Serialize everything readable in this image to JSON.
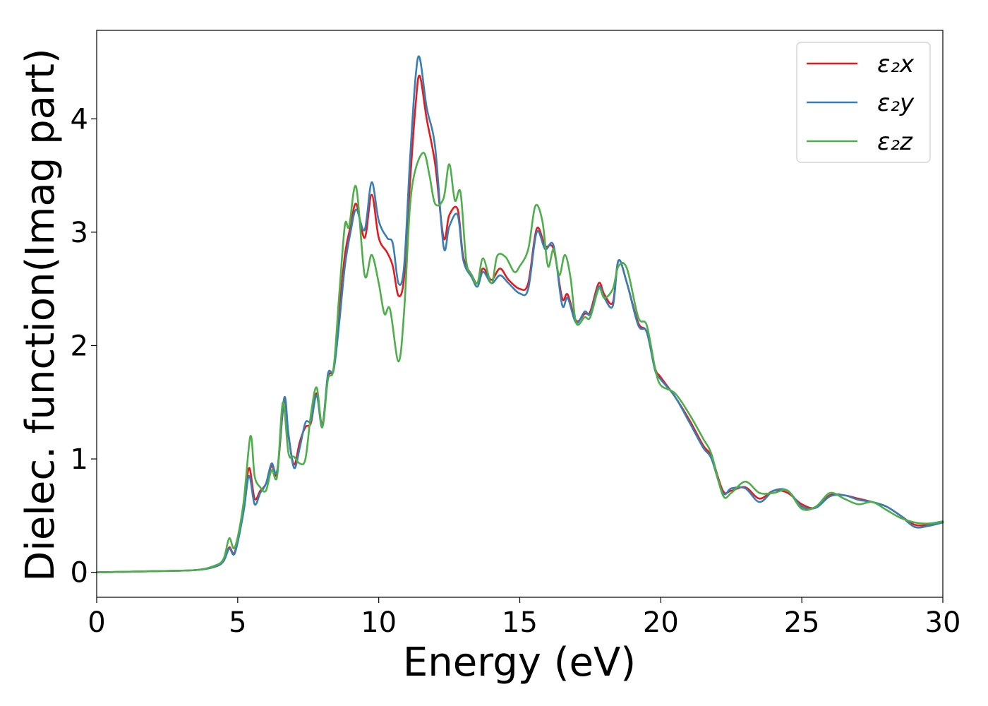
{
  "chart_data": {
    "type": "line",
    "title": "",
    "xlabel": "Energy (eV)",
    "ylabel": "Dielec. function(Imag part)",
    "xlim": [
      0,
      30
    ],
    "ylim": [
      -0.22,
      4.78
    ],
    "xticks": [
      0,
      5,
      10,
      15,
      20,
      25,
      30
    ],
    "yticks": [
      0,
      1,
      2,
      3,
      4
    ],
    "grid": false,
    "legend_position": "top-right",
    "series": [
      {
        "name": "ε₂x",
        "color": "#e41a1c",
        "x": [
          0,
          2,
          3.5,
          4.2,
          4.5,
          4.7,
          4.9,
          5.2,
          5.4,
          5.6,
          5.8,
          6.0,
          6.2,
          6.4,
          6.65,
          6.8,
          7.0,
          7.2,
          7.4,
          7.6,
          7.8,
          8.0,
          8.2,
          8.4,
          8.6,
          8.8,
          9.0,
          9.2,
          9.5,
          9.75,
          10.0,
          10.3,
          10.5,
          10.7,
          10.9,
          11.1,
          11.3,
          11.45,
          11.7,
          12.0,
          12.3,
          12.5,
          12.8,
          13.0,
          13.3,
          13.5,
          13.7,
          14.0,
          14.3,
          14.6,
          15.0,
          15.3,
          15.6,
          15.9,
          16.2,
          16.5,
          16.7,
          17.0,
          17.3,
          17.5,
          17.8,
          18.0,
          18.3,
          18.5,
          18.8,
          19.2,
          19.5,
          19.8,
          20.0,
          20.5,
          21.0,
          21.5,
          21.8,
          22.2,
          22.5,
          23.0,
          23.5,
          24.0,
          24.5,
          25.0,
          25.5,
          26.0,
          26.5,
          27.0,
          27.5,
          28.0,
          28.5,
          29.0,
          29.5,
          30.0
        ],
        "y": [
          0.0,
          0.01,
          0.02,
          0.05,
          0.1,
          0.22,
          0.18,
          0.55,
          0.92,
          0.65,
          0.72,
          0.78,
          0.94,
          0.88,
          1.52,
          1.2,
          0.95,
          1.15,
          1.28,
          1.32,
          1.58,
          1.3,
          1.72,
          1.8,
          2.3,
          2.8,
          3.05,
          3.25,
          2.95,
          3.33,
          2.95,
          2.82,
          2.7,
          2.44,
          2.6,
          3.4,
          4.1,
          4.38,
          4.0,
          3.6,
          2.95,
          3.15,
          3.2,
          2.78,
          2.62,
          2.55,
          2.68,
          2.58,
          2.68,
          2.58,
          2.5,
          2.55,
          3.03,
          2.88,
          2.85,
          2.42,
          2.45,
          2.22,
          2.28,
          2.3,
          2.55,
          2.45,
          2.38,
          2.75,
          2.55,
          2.2,
          2.12,
          1.8,
          1.72,
          1.55,
          1.35,
          1.12,
          1.02,
          0.72,
          0.72,
          0.75,
          0.65,
          0.72,
          0.7,
          0.6,
          0.57,
          0.68,
          0.68,
          0.65,
          0.62,
          0.58,
          0.5,
          0.42,
          0.42,
          0.44
        ]
      },
      {
        "name": "ε₂y",
        "color": "#377eb8",
        "x": [
          0,
          2,
          3.5,
          4.2,
          4.5,
          4.7,
          4.9,
          5.2,
          5.4,
          5.6,
          5.8,
          6.0,
          6.2,
          6.4,
          6.65,
          6.8,
          7.0,
          7.2,
          7.4,
          7.6,
          7.8,
          8.0,
          8.2,
          8.4,
          8.6,
          8.8,
          9.0,
          9.2,
          9.5,
          9.75,
          10.0,
          10.3,
          10.5,
          10.7,
          10.9,
          11.1,
          11.3,
          11.45,
          11.7,
          12.0,
          12.3,
          12.5,
          12.8,
          13.0,
          13.3,
          13.5,
          13.7,
          14.0,
          14.3,
          14.6,
          15.0,
          15.3,
          15.6,
          15.9,
          16.2,
          16.5,
          16.7,
          17.0,
          17.3,
          17.5,
          17.8,
          18.0,
          18.3,
          18.5,
          18.8,
          19.2,
          19.5,
          19.8,
          20.0,
          20.5,
          21.0,
          21.5,
          21.8,
          22.2,
          22.5,
          23.0,
          23.5,
          24.0,
          24.5,
          25.0,
          25.5,
          26.0,
          26.5,
          27.0,
          27.5,
          28.0,
          28.5,
          29.0,
          29.5,
          30.0
        ],
        "y": [
          0.0,
          0.01,
          0.02,
          0.05,
          0.1,
          0.21,
          0.17,
          0.52,
          0.85,
          0.6,
          0.7,
          0.78,
          0.96,
          0.9,
          1.54,
          1.22,
          0.92,
          1.1,
          1.32,
          1.34,
          1.56,
          1.28,
          1.75,
          1.78,
          2.2,
          2.7,
          3.0,
          3.2,
          3.02,
          3.44,
          3.1,
          2.95,
          2.9,
          2.55,
          2.7,
          3.6,
          4.35,
          4.54,
          4.1,
          3.75,
          2.87,
          3.05,
          3.15,
          2.75,
          2.6,
          2.52,
          2.65,
          2.55,
          2.62,
          2.55,
          2.46,
          2.5,
          3.0,
          2.85,
          2.88,
          2.36,
          2.42,
          2.2,
          2.3,
          2.28,
          2.52,
          2.42,
          2.35,
          2.75,
          2.55,
          2.18,
          2.12,
          1.78,
          1.7,
          1.55,
          1.33,
          1.1,
          1.0,
          0.7,
          0.74,
          0.74,
          0.62,
          0.72,
          0.72,
          0.58,
          0.57,
          0.67,
          0.68,
          0.64,
          0.62,
          0.58,
          0.5,
          0.4,
          0.41,
          0.44
        ]
      },
      {
        "name": "ε₂z",
        "color": "#4daf4a",
        "x": [
          0,
          2,
          3.5,
          4.2,
          4.5,
          4.7,
          4.9,
          5.2,
          5.45,
          5.6,
          5.8,
          6.0,
          6.2,
          6.4,
          6.6,
          6.8,
          7.0,
          7.2,
          7.4,
          7.6,
          7.8,
          8.0,
          8.2,
          8.4,
          8.6,
          8.8,
          8.95,
          9.2,
          9.5,
          9.75,
          10.0,
          10.2,
          10.4,
          10.7,
          10.9,
          11.1,
          11.3,
          11.6,
          11.8,
          12.0,
          12.3,
          12.5,
          12.7,
          12.9,
          13.1,
          13.3,
          13.5,
          13.7,
          14.0,
          14.2,
          14.5,
          14.8,
          15.0,
          15.3,
          15.55,
          15.8,
          16.0,
          16.2,
          16.4,
          16.6,
          16.8,
          17.0,
          17.3,
          17.5,
          17.8,
          18.0,
          18.3,
          18.5,
          18.8,
          19.2,
          19.5,
          19.8,
          20.0,
          20.5,
          21.0,
          21.5,
          21.8,
          22.2,
          22.5,
          23.0,
          23.5,
          24.0,
          24.5,
          25.0,
          25.5,
          26.0,
          26.5,
          27.0,
          27.5,
          28.0,
          28.5,
          29.0,
          29.5,
          30.0
        ],
        "y": [
          0.0,
          0.01,
          0.02,
          0.06,
          0.12,
          0.3,
          0.22,
          0.6,
          1.2,
          0.85,
          0.75,
          0.72,
          0.9,
          0.85,
          1.5,
          1.05,
          1.02,
          0.96,
          1.0,
          1.4,
          1.63,
          1.28,
          1.7,
          1.8,
          2.45,
          3.06,
          3.05,
          3.4,
          2.62,
          2.8,
          2.55,
          2.28,
          2.32,
          1.86,
          2.3,
          3.2,
          3.55,
          3.7,
          3.5,
          3.25,
          3.3,
          3.6,
          3.28,
          3.35,
          2.75,
          2.62,
          2.55,
          2.77,
          2.55,
          2.79,
          2.78,
          2.65,
          2.7,
          2.85,
          3.23,
          3.1,
          2.7,
          2.85,
          2.62,
          2.8,
          2.6,
          2.2,
          2.25,
          2.25,
          2.5,
          2.42,
          2.5,
          2.7,
          2.68,
          2.25,
          2.18,
          1.8,
          1.65,
          1.58,
          1.4,
          1.18,
          1.04,
          0.68,
          0.7,
          0.8,
          0.7,
          0.7,
          0.72,
          0.56,
          0.58,
          0.7,
          0.65,
          0.6,
          0.62,
          0.55,
          0.48,
          0.44,
          0.43,
          0.45
        ]
      }
    ]
  }
}
